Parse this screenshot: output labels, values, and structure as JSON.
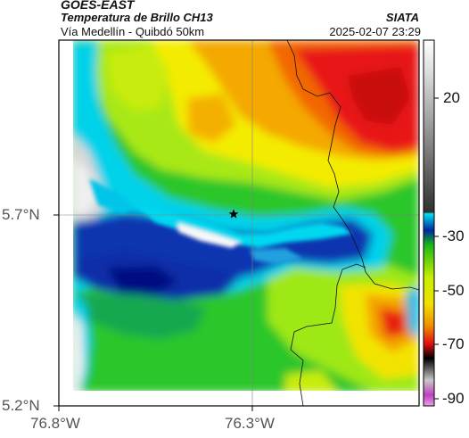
{
  "header": {
    "satellite": "GOES-EAST",
    "product": "Temperatura de Brillo CH13",
    "route": "Vía Medellín - Quibdó 50km",
    "agency": "SIATA",
    "timestamp": "2025-02-07 23:29"
  },
  "map": {
    "lat_labels": [
      "5.7°N",
      "5.2°N"
    ],
    "lon_labels": [
      "76.8°W",
      "76.3°W"
    ],
    "marker": "star-marker"
  },
  "colorbar": {
    "tick_labels": [
      "20",
      "-30",
      "-50",
      "-70",
      "-90"
    ],
    "colors": {
      "white": "#ffffff",
      "cyan": "#00d8f0",
      "blue": "#0a2fa8",
      "green": "#1fc41f",
      "lime": "#a8e818",
      "yellow": "#f4f000",
      "orange": "#f49a00",
      "red": "#e81010",
      "black": "#000000",
      "magenta": "#c040c0"
    }
  }
}
